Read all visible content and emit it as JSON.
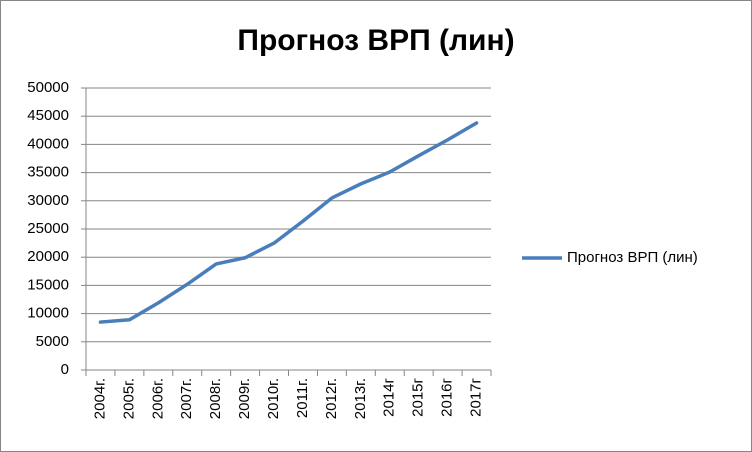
{
  "chart_data": {
    "type": "line",
    "title": "Прогноз ВРП (лин)",
    "categories": [
      "2004г.",
      "2005г.",
      "2006г.",
      "2007г.",
      "2008г.",
      "2009г.",
      "2010г.",
      "2011г.",
      "2012г.",
      "2013г.",
      "2014г",
      "2015г",
      "2016г",
      "2017г"
    ],
    "series": [
      {
        "name": "Прогноз ВРП (лин)",
        "color": "#4a7ebb",
        "values": [
          8500,
          8900,
          11900,
          15200,
          18800,
          19900,
          22500,
          26400,
          30500,
          33000,
          35100,
          38000,
          40800,
          43800
        ]
      }
    ],
    "ylim": [
      0,
      50000
    ],
    "yticks": [
      0,
      5000,
      10000,
      15000,
      20000,
      25000,
      30000,
      35000,
      40000,
      45000,
      50000
    ],
    "grid": true,
    "legend": "right"
  }
}
